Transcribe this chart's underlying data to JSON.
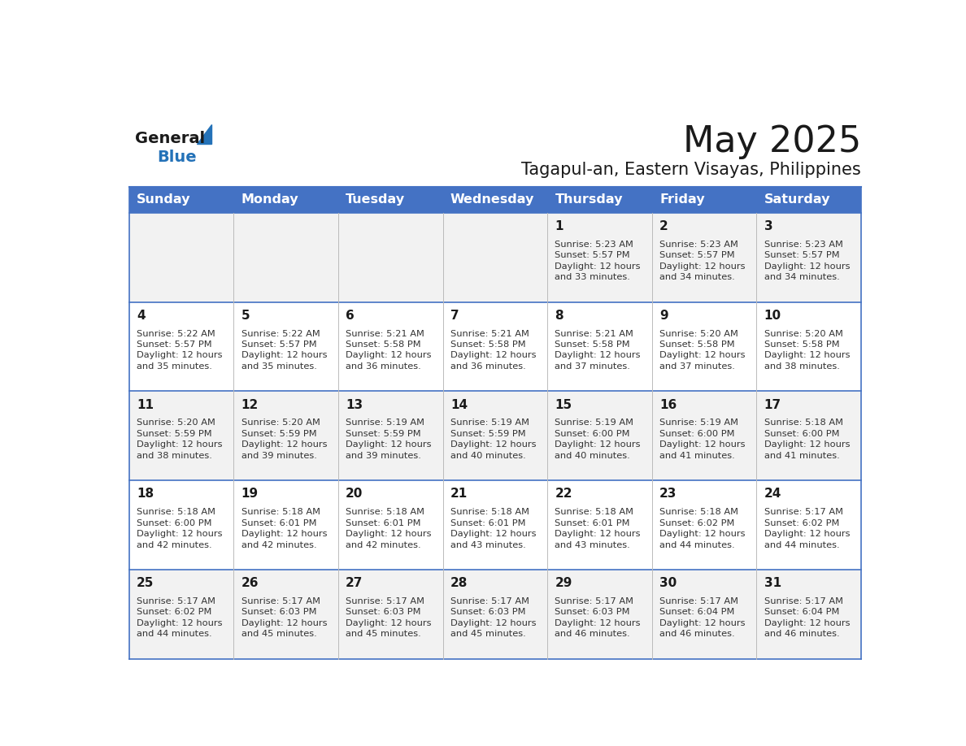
{
  "title": "May 2025",
  "subtitle": "Tagapul-an, Eastern Visayas, Philippines",
  "header_bg": "#4472C4",
  "header_text_color": "#FFFFFF",
  "cell_bg_even": "#F2F2F2",
  "cell_bg_odd": "#FFFFFF",
  "border_color": "#4472C4",
  "day_names": [
    "Sunday",
    "Monday",
    "Tuesday",
    "Wednesday",
    "Thursday",
    "Friday",
    "Saturday"
  ],
  "title_color": "#1a1a1a",
  "subtitle_color": "#1a1a1a",
  "day_number_color": "#1a1a1a",
  "cell_text_color": "#333333",
  "calendar": [
    [
      null,
      null,
      null,
      null,
      {
        "day": 1,
        "sunrise": "5:23 AM",
        "sunset": "5:57 PM",
        "daylight": "12 hours and 33 minutes."
      },
      {
        "day": 2,
        "sunrise": "5:23 AM",
        "sunset": "5:57 PM",
        "daylight": "12 hours and 34 minutes."
      },
      {
        "day": 3,
        "sunrise": "5:23 AM",
        "sunset": "5:57 PM",
        "daylight": "12 hours and 34 minutes."
      }
    ],
    [
      {
        "day": 4,
        "sunrise": "5:22 AM",
        "sunset": "5:57 PM",
        "daylight": "12 hours and 35 minutes."
      },
      {
        "day": 5,
        "sunrise": "5:22 AM",
        "sunset": "5:57 PM",
        "daylight": "12 hours and 35 minutes."
      },
      {
        "day": 6,
        "sunrise": "5:21 AM",
        "sunset": "5:58 PM",
        "daylight": "12 hours and 36 minutes."
      },
      {
        "day": 7,
        "sunrise": "5:21 AM",
        "sunset": "5:58 PM",
        "daylight": "12 hours and 36 minutes."
      },
      {
        "day": 8,
        "sunrise": "5:21 AM",
        "sunset": "5:58 PM",
        "daylight": "12 hours and 37 minutes."
      },
      {
        "day": 9,
        "sunrise": "5:20 AM",
        "sunset": "5:58 PM",
        "daylight": "12 hours and 37 minutes."
      },
      {
        "day": 10,
        "sunrise": "5:20 AM",
        "sunset": "5:58 PM",
        "daylight": "12 hours and 38 minutes."
      }
    ],
    [
      {
        "day": 11,
        "sunrise": "5:20 AM",
        "sunset": "5:59 PM",
        "daylight": "12 hours and 38 minutes."
      },
      {
        "day": 12,
        "sunrise": "5:20 AM",
        "sunset": "5:59 PM",
        "daylight": "12 hours and 39 minutes."
      },
      {
        "day": 13,
        "sunrise": "5:19 AM",
        "sunset": "5:59 PM",
        "daylight": "12 hours and 39 minutes."
      },
      {
        "day": 14,
        "sunrise": "5:19 AM",
        "sunset": "5:59 PM",
        "daylight": "12 hours and 40 minutes."
      },
      {
        "day": 15,
        "sunrise": "5:19 AM",
        "sunset": "6:00 PM",
        "daylight": "12 hours and 40 minutes."
      },
      {
        "day": 16,
        "sunrise": "5:19 AM",
        "sunset": "6:00 PM",
        "daylight": "12 hours and 41 minutes."
      },
      {
        "day": 17,
        "sunrise": "5:18 AM",
        "sunset": "6:00 PM",
        "daylight": "12 hours and 41 minutes."
      }
    ],
    [
      {
        "day": 18,
        "sunrise": "5:18 AM",
        "sunset": "6:00 PM",
        "daylight": "12 hours and 42 minutes."
      },
      {
        "day": 19,
        "sunrise": "5:18 AM",
        "sunset": "6:01 PM",
        "daylight": "12 hours and 42 minutes."
      },
      {
        "day": 20,
        "sunrise": "5:18 AM",
        "sunset": "6:01 PM",
        "daylight": "12 hours and 42 minutes."
      },
      {
        "day": 21,
        "sunrise": "5:18 AM",
        "sunset": "6:01 PM",
        "daylight": "12 hours and 43 minutes."
      },
      {
        "day": 22,
        "sunrise": "5:18 AM",
        "sunset": "6:01 PM",
        "daylight": "12 hours and 43 minutes."
      },
      {
        "day": 23,
        "sunrise": "5:18 AM",
        "sunset": "6:02 PM",
        "daylight": "12 hours and 44 minutes."
      },
      {
        "day": 24,
        "sunrise": "5:17 AM",
        "sunset": "6:02 PM",
        "daylight": "12 hours and 44 minutes."
      }
    ],
    [
      {
        "day": 25,
        "sunrise": "5:17 AM",
        "sunset": "6:02 PM",
        "daylight": "12 hours and 44 minutes."
      },
      {
        "day": 26,
        "sunrise": "5:17 AM",
        "sunset": "6:03 PM",
        "daylight": "12 hours and 45 minutes."
      },
      {
        "day": 27,
        "sunrise": "5:17 AM",
        "sunset": "6:03 PM",
        "daylight": "12 hours and 45 minutes."
      },
      {
        "day": 28,
        "sunrise": "5:17 AM",
        "sunset": "6:03 PM",
        "daylight": "12 hours and 45 minutes."
      },
      {
        "day": 29,
        "sunrise": "5:17 AM",
        "sunset": "6:03 PM",
        "daylight": "12 hours and 46 minutes."
      },
      {
        "day": 30,
        "sunrise": "5:17 AM",
        "sunset": "6:04 PM",
        "daylight": "12 hours and 46 minutes."
      },
      {
        "day": 31,
        "sunrise": "5:17 AM",
        "sunset": "6:04 PM",
        "daylight": "12 hours and 46 minutes."
      }
    ]
  ],
  "logo_general_color": "#1a1a1a",
  "logo_blue_color": "#2472B8",
  "logo_triangle_color": "#2472B8"
}
